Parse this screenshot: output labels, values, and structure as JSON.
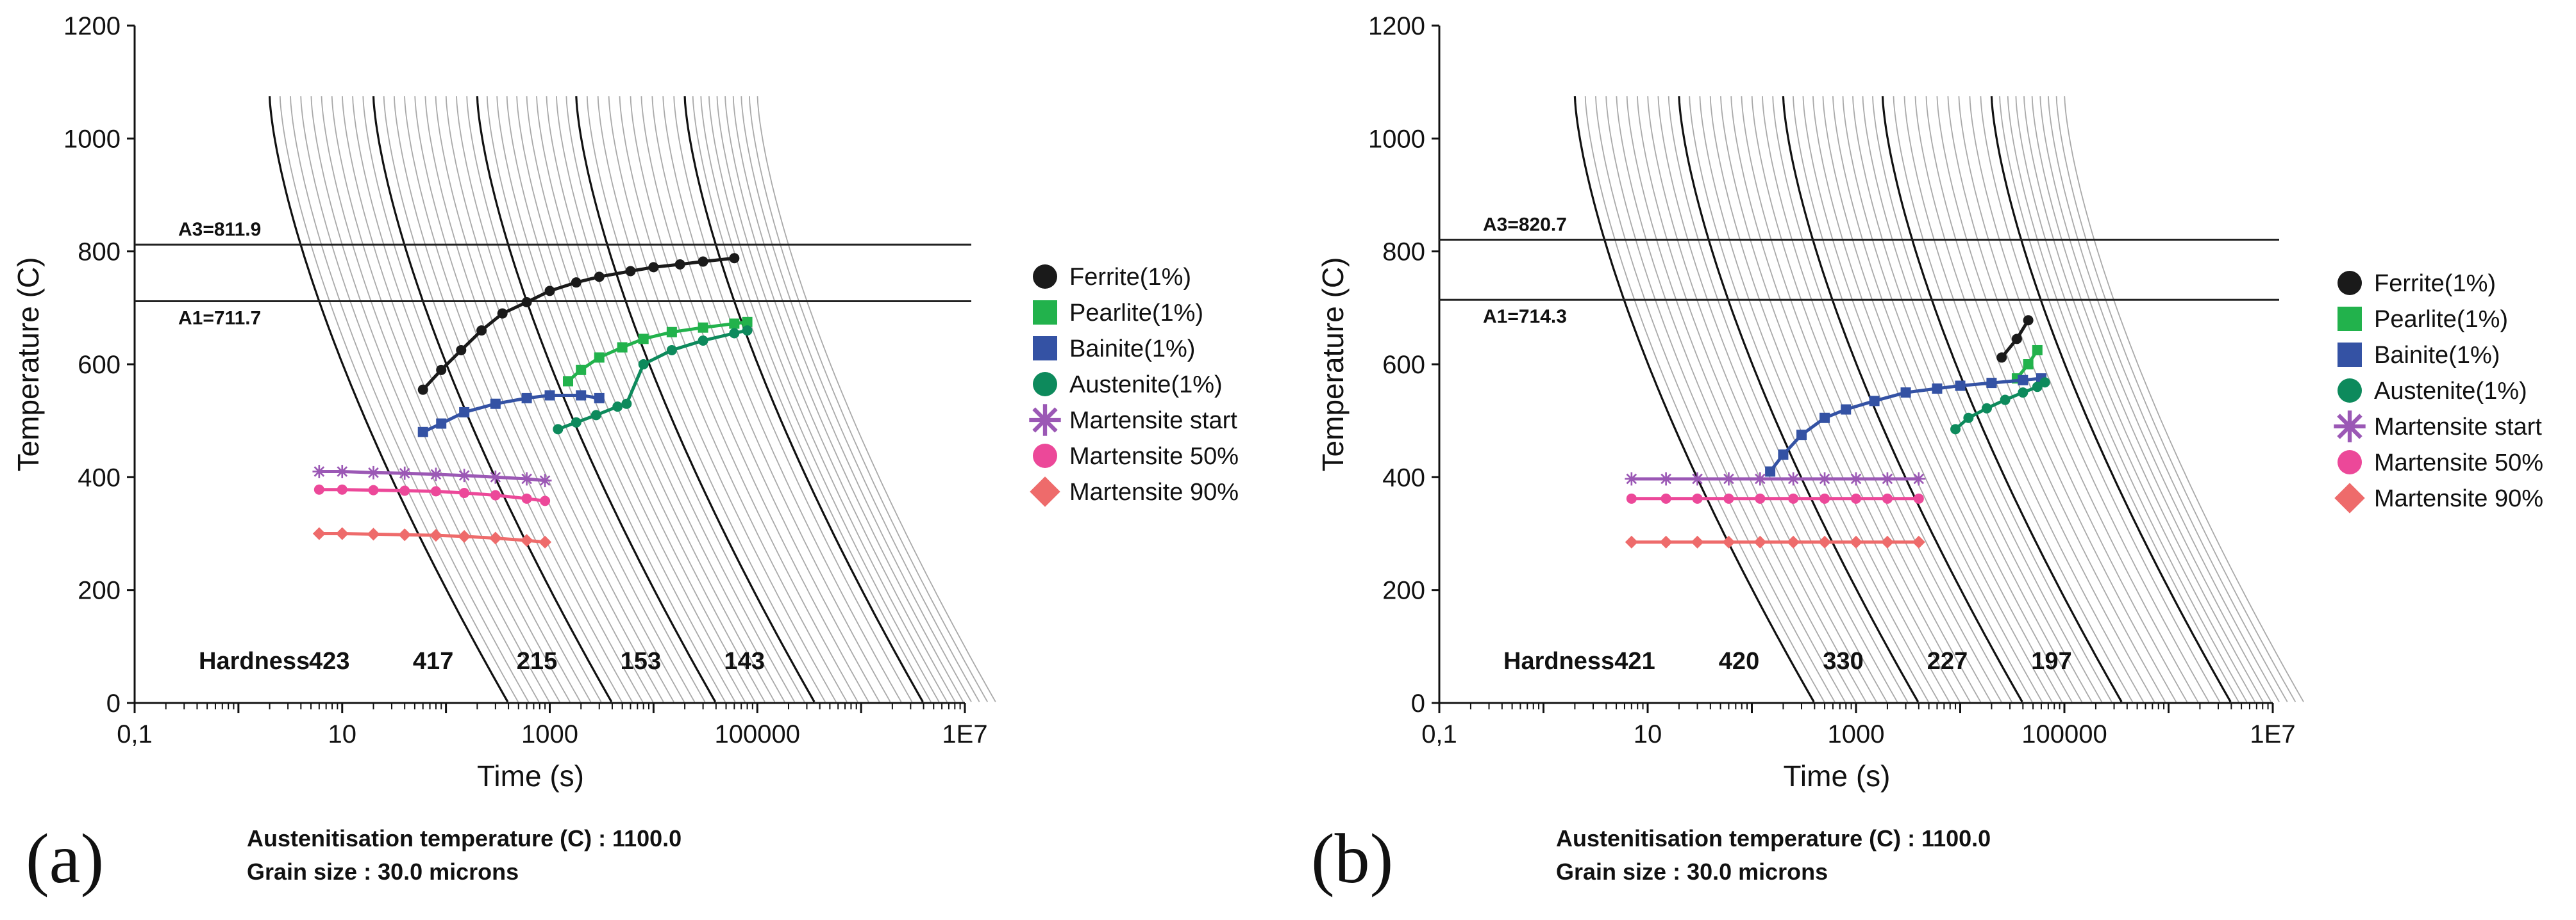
{
  "chart_data": [
    {
      "type": "line",
      "panel_label": "(a)",
      "xlabel": "Time (s)",
      "ylabel": "Temperature (C)",
      "xscale": "log",
      "xlim": [
        0.1,
        10000000
      ],
      "ylim": [
        0,
        1200
      ],
      "x_tick_labels": [
        "0,1",
        "10",
        "1000",
        "100000",
        "1E7"
      ],
      "x_tick_values": [
        0.1,
        10,
        1000,
        100000,
        10000000
      ],
      "y_tick_values": [
        0,
        200,
        400,
        600,
        800,
        1000,
        1200
      ],
      "reference_lines": [
        {
          "label": "A3=811.9",
          "value": 811.9
        },
        {
          "label": "A1=711.7",
          "value": 711.7
        }
      ],
      "cooling_curves": {
        "start_temperature": 1075,
        "bold_start_times": [
          2,
          20,
          200,
          1800,
          20000
        ],
        "light_per_gap": 9
      },
      "hardness": {
        "title": "Hardness",
        "values": [
          "423",
          "417",
          "215",
          "153",
          "143"
        ],
        "times": [
          10,
          100,
          1000,
          10000,
          100000
        ]
      },
      "series": [
        {
          "name": "Ferrite(1%)",
          "color": "#1a1a1a",
          "marker": "circle",
          "points": [
            [
              60,
              555
            ],
            [
              90,
              590
            ],
            [
              140,
              625
            ],
            [
              220,
              660
            ],
            [
              350,
              690
            ],
            [
              600,
              710
            ],
            [
              1000,
              730
            ],
            [
              1800,
              745
            ],
            [
              3000,
              755
            ],
            [
              6000,
              765
            ],
            [
              10000,
              772
            ],
            [
              18000,
              777
            ],
            [
              30000,
              782
            ],
            [
              60000,
              788
            ]
          ]
        },
        {
          "name": "Pearlite(1%)",
          "color": "#22b24c",
          "marker": "square",
          "points": [
            [
              1500,
              570
            ],
            [
              2000,
              590
            ],
            [
              3000,
              612
            ],
            [
              5000,
              630
            ],
            [
              8000,
              645
            ],
            [
              15000,
              657
            ],
            [
              30000,
              665
            ],
            [
              60000,
              672
            ],
            [
              80000,
              675
            ]
          ]
        },
        {
          "name": "Bainite(1%)",
          "color": "#3452a4",
          "marker": "square",
          "points": [
            [
              60,
              480
            ],
            [
              90,
              495
            ],
            [
              150,
              515
            ],
            [
              300,
              530
            ],
            [
              600,
              540
            ],
            [
              1000,
              545
            ],
            [
              2000,
              545
            ],
            [
              3000,
              540
            ]
          ]
        },
        {
          "name": "Austenite(1%)",
          "color": "#0d8a5c",
          "marker": "circle",
          "points": [
            [
              1200,
              485
            ],
            [
              1800,
              497
            ],
            [
              2800,
              510
            ],
            [
              4500,
              525
            ],
            [
              5500,
              530
            ],
            [
              8000,
              600
            ],
            [
              15000,
              625
            ],
            [
              30000,
              642
            ],
            [
              60000,
              655
            ],
            [
              80000,
              660
            ]
          ]
        },
        {
          "name": "Martensite start",
          "color": "#9b58b5",
          "marker": "asterisk",
          "points": [
            [
              6,
              410
            ],
            [
              10,
              410
            ],
            [
              20,
              408
            ],
            [
              40,
              407
            ],
            [
              80,
              405
            ],
            [
              150,
              403
            ],
            [
              300,
              400
            ],
            [
              600,
              397
            ],
            [
              900,
              394
            ]
          ]
        },
        {
          "name": "Martensite 50%",
          "color": "#ec4899",
          "marker": "circle",
          "points": [
            [
              6,
              378
            ],
            [
              10,
              378
            ],
            [
              20,
              377
            ],
            [
              40,
              376
            ],
            [
              80,
              375
            ],
            [
              150,
              372
            ],
            [
              300,
              368
            ],
            [
              600,
              362
            ],
            [
              900,
              358
            ]
          ]
        },
        {
          "name": "Martensite 90%",
          "color": "#ee6b6b",
          "marker": "diamond",
          "points": [
            [
              6,
              300
            ],
            [
              10,
              300
            ],
            [
              20,
              299
            ],
            [
              40,
              298
            ],
            [
              80,
              297
            ],
            [
              150,
              295
            ],
            [
              300,
              292
            ],
            [
              600,
              288
            ],
            [
              900,
              285
            ]
          ]
        }
      ],
      "info": [
        "Austenitisation temperature (C) : 1100.0",
        "Grain size : 30.0 microns"
      ]
    },
    {
      "type": "line",
      "panel_label": "(b)",
      "xlabel": "Time (s)",
      "ylabel": "Temperature (C)",
      "xscale": "log",
      "xlim": [
        0.1,
        10000000
      ],
      "ylim": [
        0,
        1200
      ],
      "x_tick_labels": [
        "0,1",
        "10",
        "1000",
        "100000",
        "1E7"
      ],
      "x_tick_values": [
        0.1,
        10,
        1000,
        100000,
        10000000
      ],
      "y_tick_values": [
        0,
        200,
        400,
        600,
        800,
        1000,
        1200
      ],
      "reference_lines": [
        {
          "label": "A3=820.7",
          "value": 820.7
        },
        {
          "label": "A1=714.3",
          "value": 714.3
        }
      ],
      "cooling_curves": {
        "start_temperature": 1075,
        "bold_start_times": [
          2,
          20,
          200,
          1800,
          20000
        ],
        "light_per_gap": 9
      },
      "hardness": {
        "title": "Hardness",
        "values": [
          "421",
          "420",
          "330",
          "227",
          "197"
        ],
        "times": [
          10,
          100,
          1000,
          10000,
          100000
        ]
      },
      "series": [
        {
          "name": "Ferrite(1%)",
          "color": "#1a1a1a",
          "marker": "circle",
          "points": [
            [
              25000,
              612
            ],
            [
              35000,
              645
            ],
            [
              45000,
              678
            ]
          ]
        },
        {
          "name": "Pearlite(1%)",
          "color": "#22b24c",
          "marker": "square",
          "points": [
            [
              35000,
              575
            ],
            [
              45000,
              600
            ],
            [
              55000,
              625
            ]
          ]
        },
        {
          "name": "Bainite(1%)",
          "color": "#3452a4",
          "marker": "square",
          "points": [
            [
              150,
              410
            ],
            [
              200,
              440
            ],
            [
              300,
              475
            ],
            [
              500,
              505
            ],
            [
              800,
              520
            ],
            [
              1500,
              535
            ],
            [
              3000,
              550
            ],
            [
              6000,
              557
            ],
            [
              10000,
              562
            ],
            [
              20000,
              567
            ],
            [
              40000,
              572
            ],
            [
              60000,
              575
            ]
          ]
        },
        {
          "name": "Austenite(1%)",
          "color": "#0d8a5c",
          "marker": "circle",
          "points": [
            [
              9000,
              485
            ],
            [
              12000,
              505
            ],
            [
              18000,
              522
            ],
            [
              27000,
              537
            ],
            [
              40000,
              550
            ],
            [
              55000,
              560
            ],
            [
              65000,
              568
            ]
          ]
        },
        {
          "name": "Martensite start",
          "color": "#9b58b5",
          "marker": "asterisk",
          "points": [
            [
              7,
              397
            ],
            [
              15,
              397
            ],
            [
              30,
              397
            ],
            [
              60,
              397
            ],
            [
              120,
              397
            ],
            [
              250,
              397
            ],
            [
              500,
              397
            ],
            [
              1000,
              397
            ],
            [
              2000,
              397
            ],
            [
              4000,
              397
            ]
          ]
        },
        {
          "name": "Martensite 50%",
          "color": "#ec4899",
          "marker": "circle",
          "points": [
            [
              7,
              362
            ],
            [
              15,
              362
            ],
            [
              30,
              362
            ],
            [
              60,
              362
            ],
            [
              120,
              362
            ],
            [
              250,
              362
            ],
            [
              500,
              362
            ],
            [
              1000,
              362
            ],
            [
              2000,
              362
            ],
            [
              4000,
              362
            ]
          ]
        },
        {
          "name": "Martensite 90%",
          "color": "#ee6b6b",
          "marker": "diamond",
          "points": [
            [
              7,
              285
            ],
            [
              15,
              285
            ],
            [
              30,
              285
            ],
            [
              60,
              285
            ],
            [
              120,
              285
            ],
            [
              250,
              285
            ],
            [
              500,
              285
            ],
            [
              1000,
              285
            ],
            [
              2000,
              285
            ],
            [
              4000,
              285
            ]
          ]
        }
      ],
      "info": [
        "Austenitisation temperature (C) : 1100.0",
        "Grain size : 30.0 microns"
      ]
    }
  ]
}
